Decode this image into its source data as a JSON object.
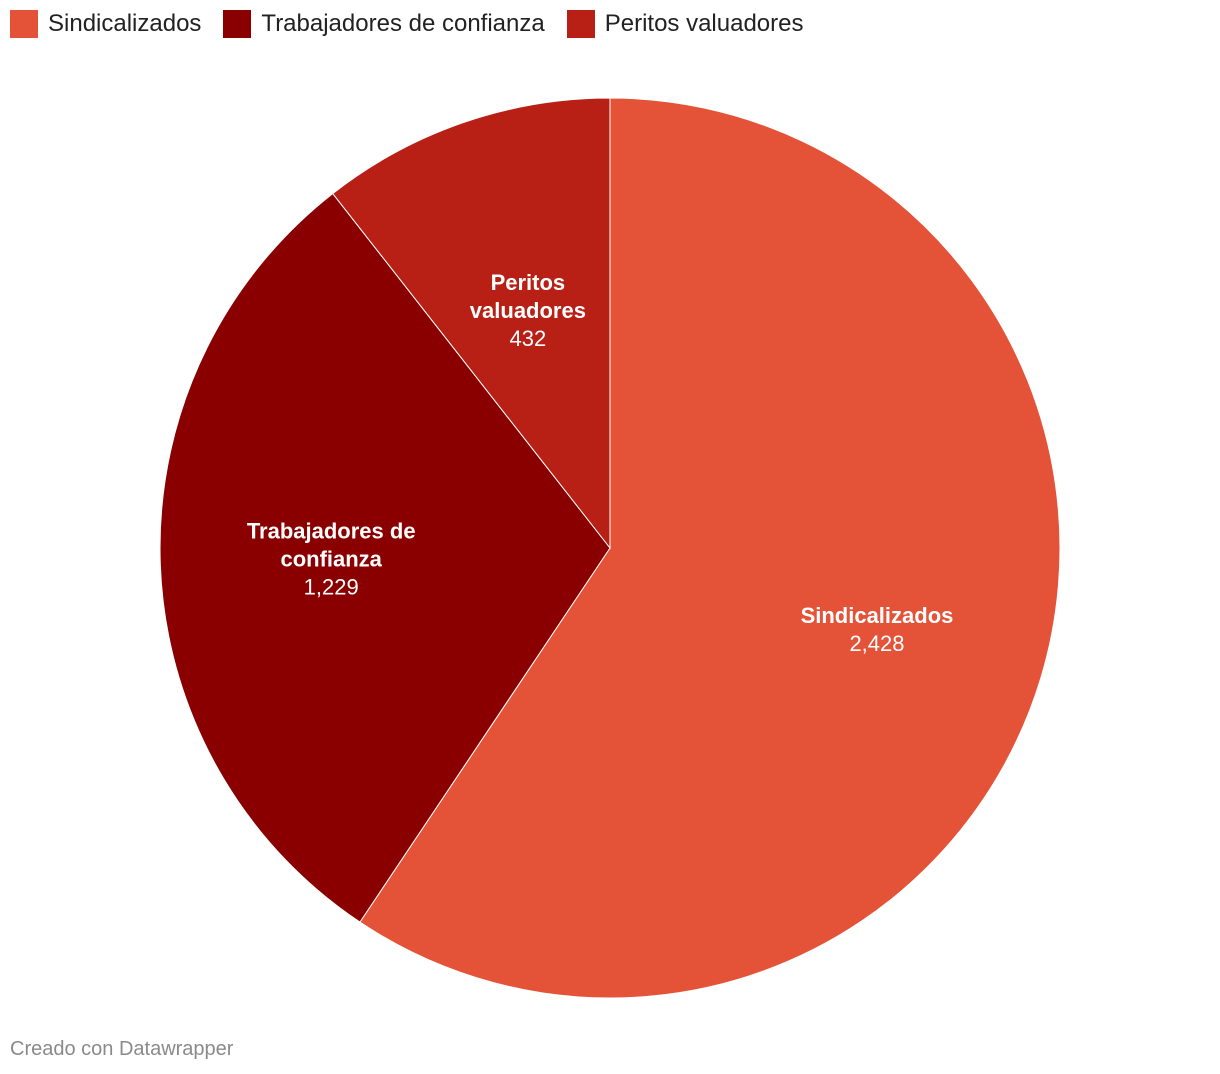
{
  "chart_data": {
    "type": "pie",
    "title": "",
    "legend_position": "top-left",
    "slices": [
      {
        "name": "Sindicalizados",
        "label_lines": [
          "Sindicalizados"
        ],
        "value": 2428,
        "value_label": "2,428",
        "color": "#e45237"
      },
      {
        "name": "Trabajadores de confianza",
        "label_lines": [
          "Trabajadores de",
          "confianza"
        ],
        "value": 1229,
        "value_label": "1,229",
        "color": "#8a0000"
      },
      {
        "name": "Peritos valuadores",
        "label_lines": [
          "Peritos",
          "valuadores"
        ],
        "value": 432,
        "value_label": "432",
        "color": "#b82015"
      }
    ]
  },
  "footer": {
    "credit": "Creado con Datawrapper"
  }
}
